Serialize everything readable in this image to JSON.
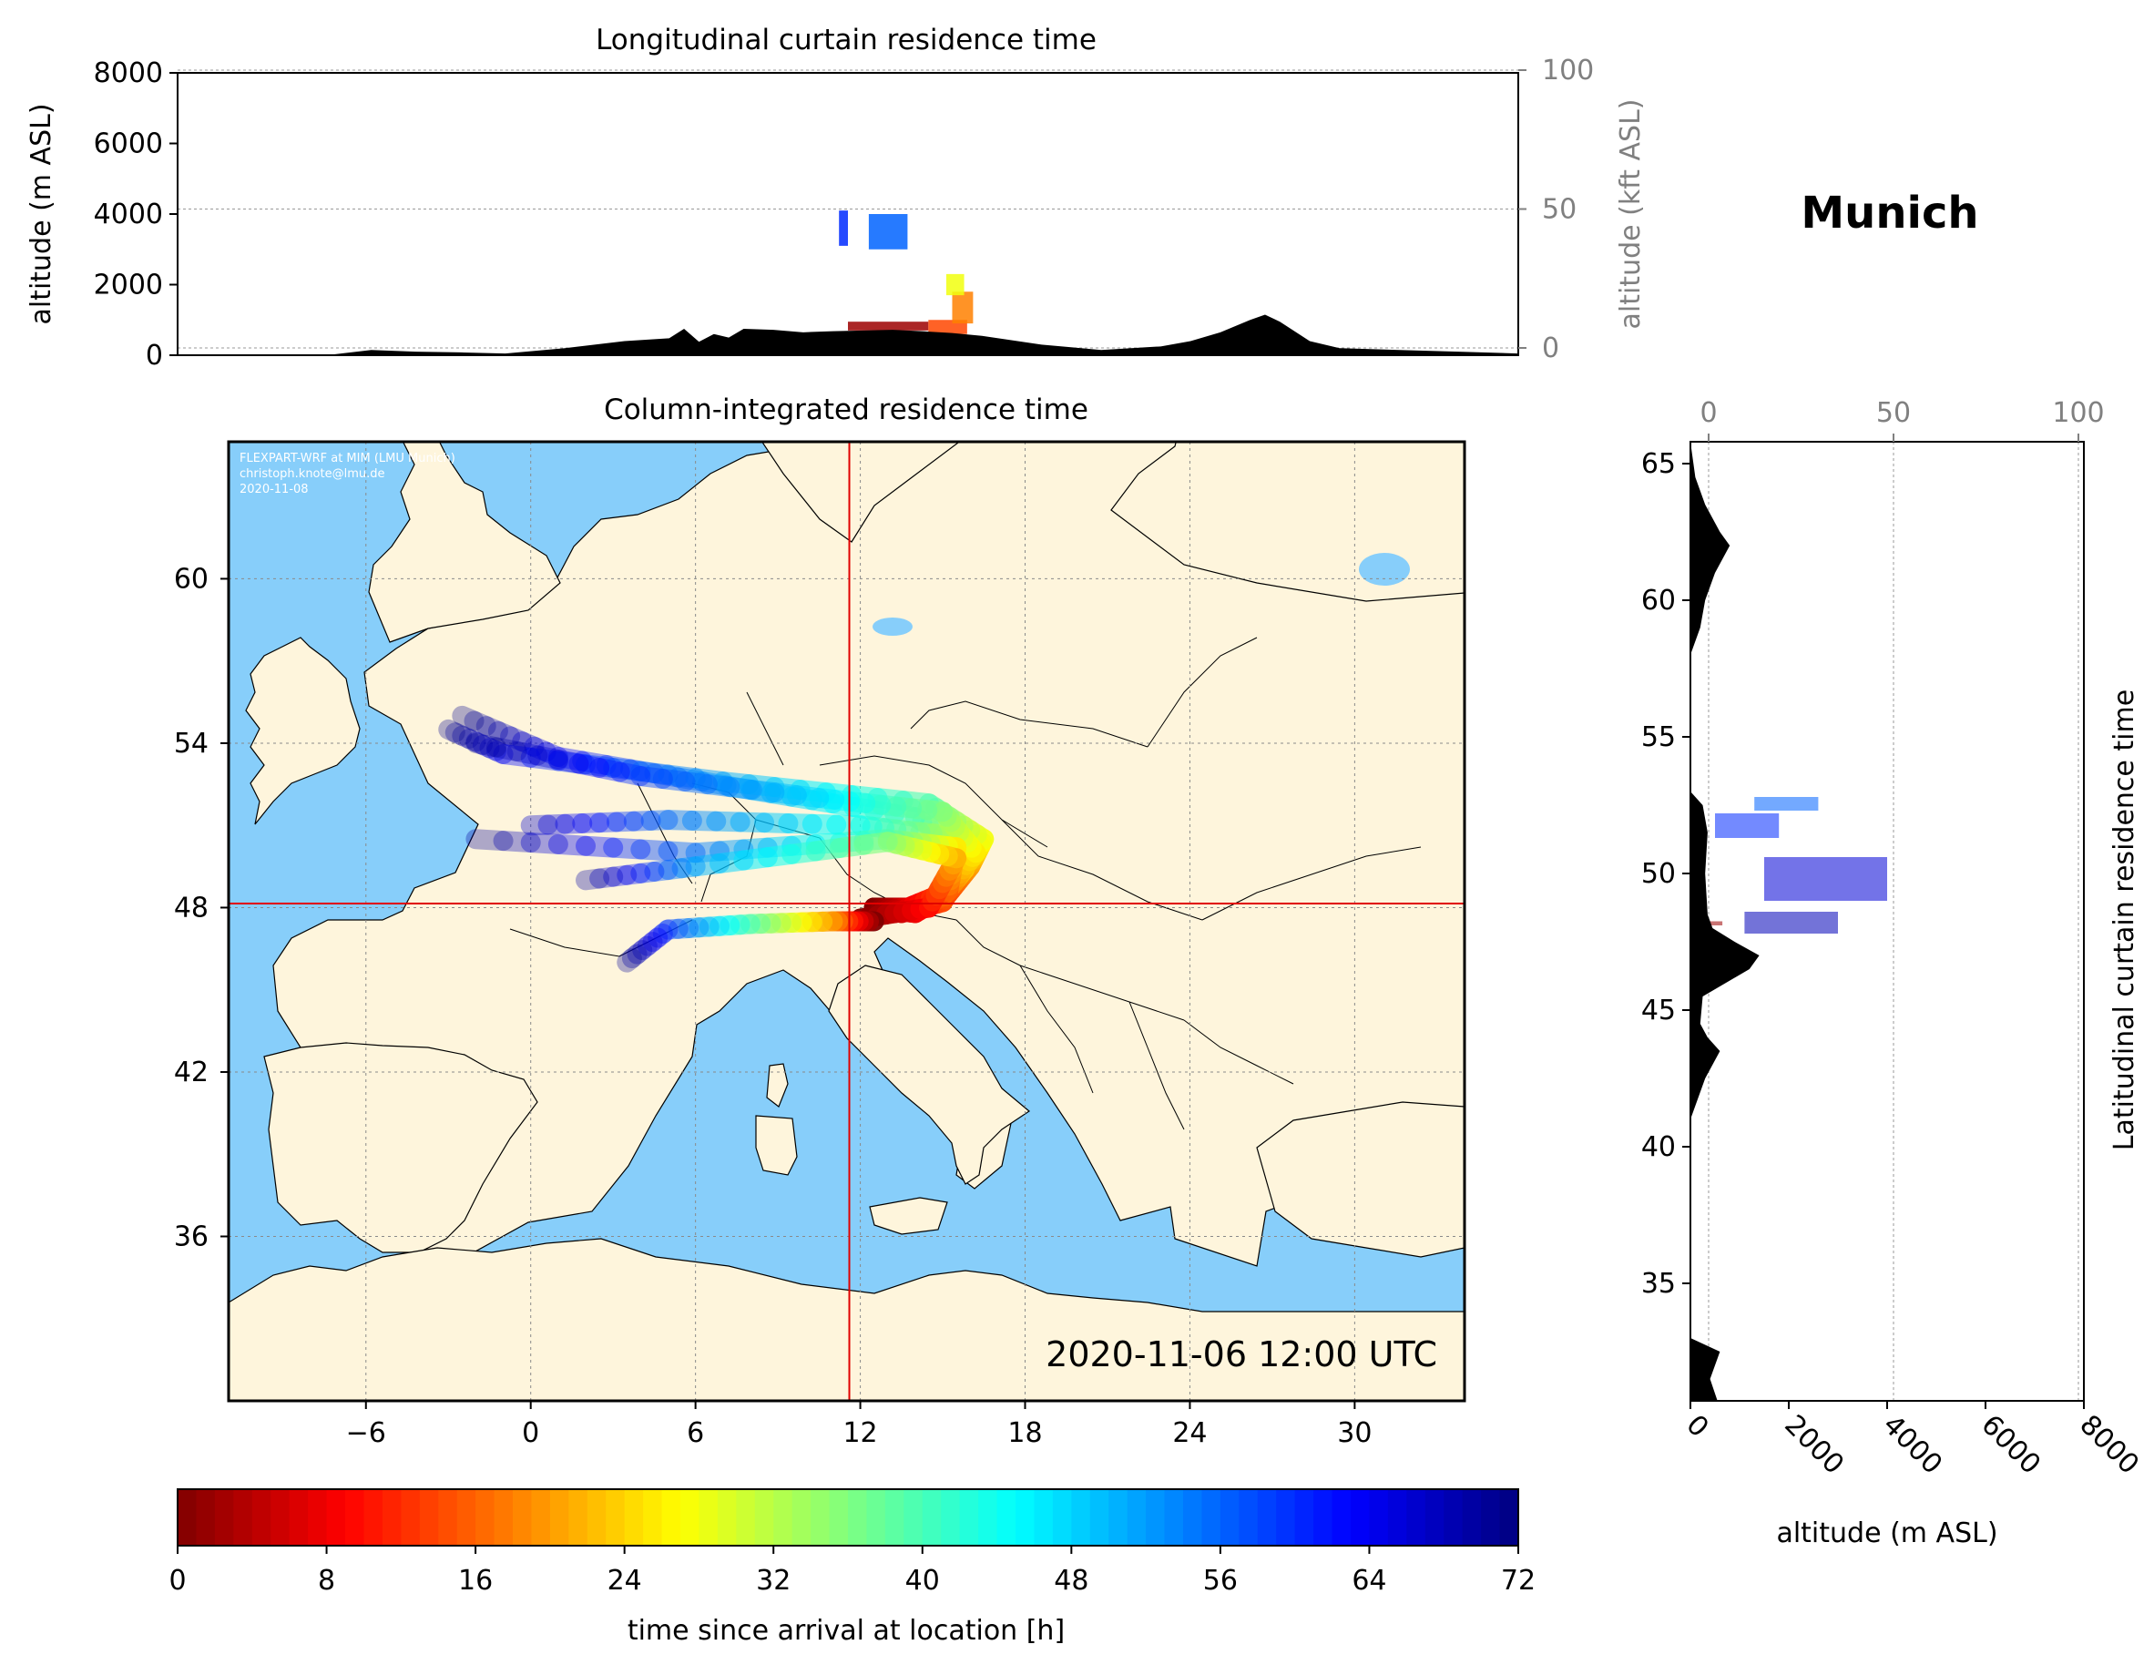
{
  "figure": {
    "location_title": "Munich",
    "timestamp": "2020-11-06 12:00 UTC",
    "credits": [
      "FLEXPART-WRF at MIM (LMU Munich)",
      "christoph.knote@lmu.de",
      "2020-11-08"
    ]
  },
  "chart_data": [
    {
      "id": "longitudinal",
      "type": "heatmap",
      "title": "Longitudinal curtain residence time",
      "ylabel": "altitude (m ASL)",
      "y2label": "altitude (kft ASL)",
      "ylim": [
        0,
        8000
      ],
      "y2lim": [
        0,
        100
      ],
      "yticks": [
        "0",
        "2000",
        "4000",
        "6000",
        "8000"
      ],
      "y2ticks": [
        "0",
        "50",
        "100"
      ],
      "xlim": [
        -11,
        34
      ],
      "terrain": {
        "lon": [
          -11,
          -6,
          -4.5,
          -3,
          -1.5,
          0,
          2,
          4,
          5.5,
          6,
          6.5,
          7,
          7.5,
          8,
          9,
          10,
          11,
          12,
          13,
          14,
          15,
          16,
          18,
          20,
          22,
          23,
          24,
          25,
          25.5,
          26,
          27,
          28,
          30,
          32,
          34
        ],
        "altitude": [
          0,
          0,
          150,
          100,
          80,
          50,
          200,
          400,
          480,
          750,
          380,
          600,
          500,
          750,
          720,
          650,
          680,
          700,
          720,
          680,
          630,
          550,
          300,
          150,
          250,
          400,
          650,
          1000,
          1150,
          950,
          400,
          200,
          150,
          100,
          50
        ]
      },
      "plume_segments": [
        {
          "lon": [
            11.2,
            11.5
          ],
          "alt_min": 3100,
          "alt_max": 4100,
          "time_h": 60
        },
        {
          "lon": [
            12.2,
            13.5
          ],
          "alt_min": 3000,
          "alt_max": 4000,
          "time_h": 56
        },
        {
          "lon": [
            11.5,
            14.2
          ],
          "alt_min": 700,
          "alt_max": 950,
          "time_h": 2
        },
        {
          "lon": [
            14.2,
            15.5
          ],
          "alt_min": 600,
          "alt_max": 1000,
          "time_h": 14
        },
        {
          "lon": [
            15.0,
            15.7
          ],
          "alt_min": 900,
          "alt_max": 1800,
          "time_h": 18
        },
        {
          "lon": [
            14.8,
            15.4
          ],
          "alt_min": 1700,
          "alt_max": 2300,
          "time_h": 28
        }
      ]
    },
    {
      "id": "map",
      "type": "heatmap",
      "title": "Column-integrated residence time",
      "xlim": [
        -11,
        34
      ],
      "ylim": [
        30,
        65
      ],
      "xticks": [
        -6,
        0,
        6,
        12,
        18,
        24,
        30
      ],
      "yticks": [
        36,
        42,
        48,
        54,
        60
      ],
      "xtick_labels": [
        "−6",
        "0",
        "6",
        "12",
        "18",
        "24",
        "30"
      ],
      "ytick_labels": [
        "36",
        "42",
        "48",
        "54",
        "60"
      ],
      "release_point": {
        "lon": 11.6,
        "lat": 48.15
      },
      "ocean_color": "#87CEFA",
      "land_color": "#FEF5DC",
      "trajectories": [
        {
          "time_h": [
            0,
            6,
            14,
            20,
            28,
            40,
            52,
            64,
            72
          ],
          "lon": [
            12.5,
            13.5,
            15.0,
            15.5,
            16.0,
            14.0,
            8.0,
            1.0,
            -2.5
          ],
          "lat": [
            48.0,
            47.8,
            48.2,
            49.0,
            50.0,
            51.3,
            52.3,
            53.5,
            55.0
          ]
        },
        {
          "time_h": [
            0,
            6,
            14,
            20,
            28,
            40,
            52,
            64,
            72
          ],
          "lon": [
            12.5,
            13.8,
            15.2,
            16.0,
            16.5,
            14.5,
            7.0,
            -1.0,
            -3.0
          ],
          "lat": [
            48.0,
            48.0,
            48.5,
            49.5,
            50.5,
            51.8,
            52.6,
            53.6,
            54.5
          ]
        },
        {
          "time_h": [
            0,
            8,
            16,
            24,
            32,
            44,
            56,
            68
          ],
          "lon": [
            12.5,
            14.0,
            15.0,
            15.8,
            15.5,
            12.0,
            5.0,
            0.0
          ],
          "lat": [
            48.0,
            47.8,
            48.4,
            49.4,
            50.6,
            51.0,
            51.2,
            51.0
          ]
        },
        {
          "time_h": [
            0,
            10,
            18,
            26,
            36,
            48,
            60,
            72
          ],
          "lon": [
            12.5,
            14.2,
            15.3,
            16.2,
            15.0,
            10.5,
            4.0,
            -2.0
          ],
          "lat": [
            48.0,
            48.0,
            48.8,
            50.0,
            51.5,
            52.0,
            52.8,
            54.0
          ]
        },
        {
          "time_h": [
            0,
            6,
            16,
            26,
            40,
            56,
            72
          ],
          "lon": [
            12.5,
            13.5,
            15.2,
            15.5,
            13.0,
            6.0,
            -2.0
          ],
          "lat": [
            48.0,
            47.9,
            48.6,
            50.2,
            50.5,
            50.0,
            50.5
          ]
        },
        {
          "time_h": [
            0,
            10,
            22,
            36,
            52,
            72
          ],
          "lon": [
            12.0,
            14.5,
            15.5,
            13.0,
            6.0,
            2.0
          ],
          "lat": [
            47.6,
            48.0,
            49.8,
            50.4,
            49.5,
            49.0
          ]
        },
        {
          "time_h": [
            0,
            20,
            40,
            60,
            72
          ],
          "lon": [
            12.5,
            11.0,
            8.0,
            5.0,
            3.5
          ],
          "lat": [
            47.5,
            47.5,
            47.4,
            47.2,
            46.0
          ]
        }
      ]
    },
    {
      "id": "latitudinal",
      "type": "heatmap",
      "title": "Latitudinal curtain residence time",
      "xlabel": "altitude (m ASL)",
      "xlim": [
        0,
        8000
      ],
      "x2lim": [
        0,
        100
      ],
      "xticks": [
        "0",
        "2000",
        "4000",
        "6000",
        "8000"
      ],
      "x2ticks": [
        "0",
        "50",
        "100"
      ],
      "ylim": [
        30.7,
        65.8
      ],
      "yticks": [
        "35",
        "40",
        "45",
        "50",
        "55",
        "60",
        "65"
      ],
      "terrain": {
        "lat": [
          30.7,
          31.5,
          32.5,
          33.0,
          41.0,
          42.5,
          43.5,
          44.0,
          44.5,
          45.5,
          46.5,
          47.0,
          47.5,
          48.0,
          48.5,
          50.0,
          51.5,
          52.5,
          53.0,
          56.0,
          58.0,
          59.0,
          60.0,
          61.0,
          62.0,
          62.5,
          63.5,
          64.5,
          65.8
        ],
        "altitude": [
          550,
          400,
          600,
          0,
          0,
          300,
          600,
          350,
          200,
          250,
          1200,
          1400,
          900,
          450,
          350,
          300,
          350,
          250,
          0,
          0,
          0,
          200,
          300,
          500,
          800,
          600,
          300,
          100,
          0
        ]
      },
      "plume_segments": [
        {
          "lat": [
            52.3,
            52.8
          ],
          "alt_min": 1300,
          "alt_max": 2600,
          "time_h": 56
        },
        {
          "lat": [
            51.3,
            52.2
          ],
          "alt_min": 500,
          "alt_max": 1800,
          "time_h": 60
        },
        {
          "lat": [
            49.0,
            50.6
          ],
          "alt_min": 1500,
          "alt_max": 4000,
          "time_h": 66
        },
        {
          "lat": [
            47.8,
            48.6
          ],
          "alt_min": 1100,
          "alt_max": 3000,
          "time_h": 68
        },
        {
          "lat": [
            48.1,
            48.25
          ],
          "alt_min": 300,
          "alt_max": 650,
          "time_h": 2
        }
      ]
    }
  ],
  "colorbar": {
    "label": "time since arrival at location [h]",
    "min": 0,
    "max": 72,
    "ticks": [
      "0",
      "8",
      "16",
      "24",
      "32",
      "40",
      "48",
      "56",
      "64",
      "72"
    ],
    "colormap": "jet_r",
    "n_levels": 72
  }
}
